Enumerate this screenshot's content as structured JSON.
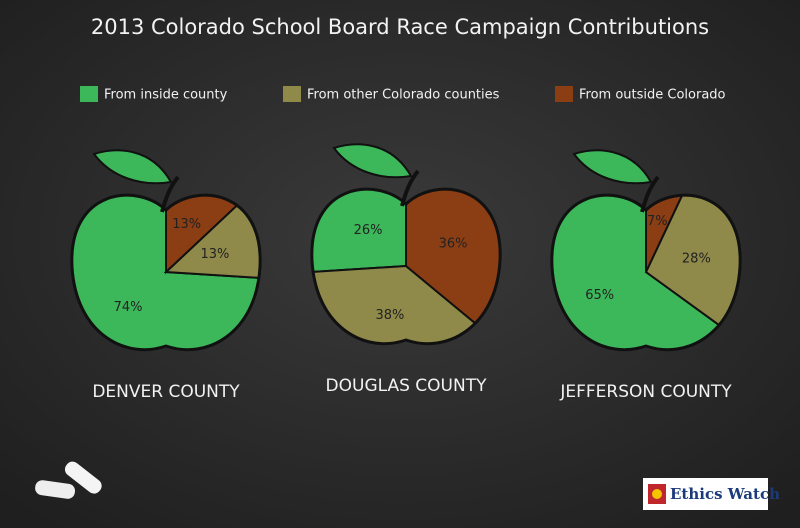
{
  "title": "2013 Colorado School Board Race Campaign Contributions",
  "logo": "Ethics Watch",
  "chart_data": [
    {
      "type": "pie",
      "title": "DENVER COUNTY",
      "categories": [
        "From inside county",
        "From other Colorado counties",
        "From outside Colorado"
      ],
      "colors": [
        "#3cb85a",
        "#8f8a4a",
        "#8b3e14"
      ],
      "values": [
        74,
        13,
        13
      ],
      "value_labels": [
        "74%",
        "13%",
        "13%"
      ]
    },
    {
      "type": "pie",
      "title": "DOUGLAS COUNTY",
      "categories": [
        "From inside county",
        "From other Colorado counties",
        "From outside Colorado"
      ],
      "colors": [
        "#3cb85a",
        "#8f8a4a",
        "#8b3e14"
      ],
      "values": [
        26,
        38,
        36
      ],
      "value_labels": [
        "26%",
        "38%",
        "36%"
      ]
    },
    {
      "type": "pie",
      "title": "JEFFERSON COUNTY",
      "categories": [
        "From inside county",
        "From other Colorado counties",
        "From outside Colorado"
      ],
      "colors": [
        "#3cb85a",
        "#8f8a4a",
        "#8b3e14"
      ],
      "values": [
        65,
        28,
        7
      ],
      "value_labels": [
        "65%",
        "28%",
        "7%"
      ]
    }
  ]
}
